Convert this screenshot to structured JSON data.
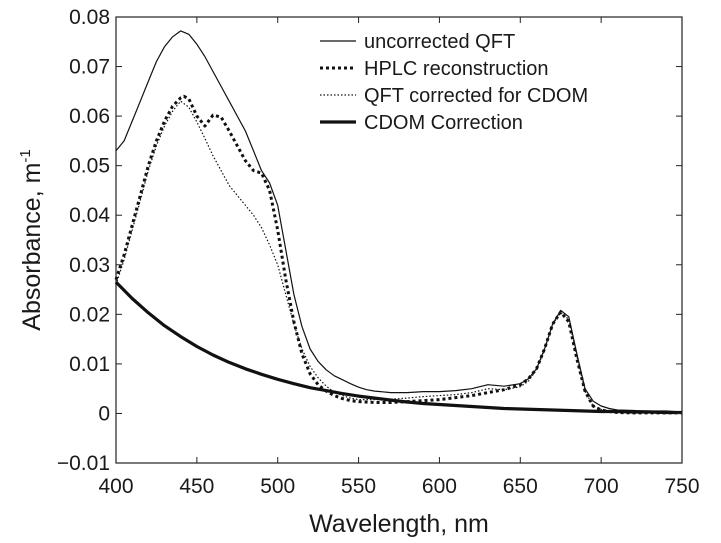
{
  "chart_data": {
    "type": "line",
    "xlabel": "Wavelength, nm",
    "ylabel_main": "Absorbance, m",
    "ylabel_superscript": "-1",
    "xlim": [
      400,
      750
    ],
    "ylim": [
      -0.01,
      0.08
    ],
    "xticks": [
      400,
      450,
      500,
      550,
      600,
      650,
      700,
      750
    ],
    "yticks": [
      -0.01,
      0,
      0.01,
      0.02,
      0.03,
      0.04,
      0.05,
      0.06,
      0.07,
      0.08
    ],
    "xtick_labels": [
      "400",
      "450",
      "500",
      "550",
      "600",
      "650",
      "700",
      "750"
    ],
    "ytick_labels": [
      "−0.01",
      "0",
      "0.01",
      "0.02",
      "0.03",
      "0.04",
      "0.05",
      "0.06",
      "0.07",
      "0.08"
    ],
    "grid": false,
    "legend_position": "top-right",
    "series": [
      {
        "name": "uncorrected QFT",
        "style": "thin-solid",
        "x": [
          400,
          405,
          410,
          415,
          420,
          425,
          430,
          435,
          440,
          445,
          450,
          455,
          460,
          465,
          470,
          475,
          480,
          485,
          490,
          495,
          500,
          505,
          510,
          515,
          520,
          525,
          530,
          535,
          540,
          545,
          550,
          555,
          560,
          570,
          580,
          590,
          600,
          610,
          620,
          630,
          640,
          650,
          655,
          660,
          665,
          670,
          675,
          680,
          685,
          690,
          695,
          700,
          705,
          710,
          720,
          730,
          740,
          750
        ],
        "values": [
          0.053,
          0.055,
          0.059,
          0.063,
          0.067,
          0.071,
          0.074,
          0.076,
          0.0772,
          0.0765,
          0.0745,
          0.072,
          0.069,
          0.066,
          0.063,
          0.06,
          0.057,
          0.053,
          0.049,
          0.0465,
          0.042,
          0.033,
          0.024,
          0.0175,
          0.013,
          0.0105,
          0.0088,
          0.0076,
          0.0068,
          0.006,
          0.0053,
          0.0048,
          0.0045,
          0.0042,
          0.0042,
          0.0044,
          0.0044,
          0.0046,
          0.005,
          0.0058,
          0.0055,
          0.006,
          0.007,
          0.009,
          0.013,
          0.018,
          0.0208,
          0.0195,
          0.012,
          0.005,
          0.0025,
          0.0015,
          0.001,
          0.0007,
          0.0006,
          0.0005,
          0.0005,
          0.0003
        ]
      },
      {
        "name": "HPLC reconstruction",
        "style": "thick-dotted",
        "x": [
          400,
          405,
          410,
          415,
          420,
          425,
          430,
          435,
          440,
          442,
          445,
          450,
          455,
          460,
          465,
          470,
          475,
          480,
          485,
          490,
          495,
          500,
          505,
          510,
          515,
          520,
          525,
          530,
          535,
          540,
          545,
          550,
          560,
          570,
          580,
          590,
          600,
          610,
          620,
          630,
          640,
          650,
          655,
          660,
          665,
          670,
          675,
          680,
          685,
          690,
          695,
          700,
          705,
          710,
          720,
          730,
          740,
          750
        ],
        "values": [
          0.027,
          0.032,
          0.038,
          0.044,
          0.05,
          0.055,
          0.059,
          0.062,
          0.0637,
          0.064,
          0.0635,
          0.06,
          0.058,
          0.0602,
          0.0598,
          0.057,
          0.054,
          0.051,
          0.049,
          0.0485,
          0.045,
          0.037,
          0.027,
          0.0185,
          0.012,
          0.008,
          0.0058,
          0.0045,
          0.0036,
          0.003,
          0.0026,
          0.0024,
          0.0022,
          0.0022,
          0.0024,
          0.0026,
          0.0028,
          0.0032,
          0.0036,
          0.0042,
          0.0048,
          0.0058,
          0.007,
          0.009,
          0.013,
          0.018,
          0.0205,
          0.0185,
          0.011,
          0.0045,
          0.0015,
          0.0007,
          0.0004,
          0.0002,
          0.0001,
          0.0001,
          0.0001,
          0.0001
        ]
      },
      {
        "name": "QFT corrected for CDOM",
        "style": "thin-dotted",
        "x": [
          400,
          405,
          410,
          415,
          420,
          425,
          430,
          435,
          440,
          445,
          450,
          455,
          460,
          465,
          470,
          475,
          480,
          485,
          490,
          495,
          500,
          505,
          510,
          515,
          520,
          525,
          530,
          535,
          540,
          545,
          550,
          560,
          570,
          580,
          590,
          600,
          610,
          620,
          630,
          640,
          650,
          655,
          660,
          665,
          670,
          675,
          680,
          685,
          690,
          695,
          700,
          705,
          710,
          715,
          720,
          725,
          730,
          735,
          740,
          745,
          750
        ],
        "values": [
          0.026,
          0.031,
          0.037,
          0.043,
          0.049,
          0.054,
          0.058,
          0.061,
          0.063,
          0.0618,
          0.0588,
          0.0555,
          0.052,
          0.049,
          0.046,
          0.044,
          0.042,
          0.04,
          0.0375,
          0.034,
          0.03,
          0.024,
          0.018,
          0.013,
          0.0095,
          0.0072,
          0.0055,
          0.0043,
          0.0036,
          0.0031,
          0.0028,
          0.0028,
          0.0029,
          0.0031,
          0.0034,
          0.0036,
          0.0038,
          0.0042,
          0.005,
          0.0048,
          0.0054,
          0.0065,
          0.0088,
          0.0128,
          0.018,
          0.0203,
          0.019,
          0.0115,
          0.0045,
          0.0015,
          0.0008,
          0.0003,
          0.0004,
          0.0006,
          0.0002,
          0.0005,
          0.0001,
          0.0004,
          0.0002,
          0.0001,
          0.0
        ]
      },
      {
        "name": "CDOM Correction",
        "style": "thick-solid",
        "x": [
          400,
          410,
          420,
          430,
          440,
          450,
          460,
          470,
          480,
          490,
          500,
          510,
          520,
          530,
          540,
          550,
          560,
          570,
          580,
          590,
          600,
          610,
          620,
          630,
          640,
          650,
          660,
          670,
          680,
          690,
          700,
          710,
          720,
          730,
          740,
          750
        ],
        "values": [
          0.0265,
          0.0232,
          0.0203,
          0.0177,
          0.0155,
          0.0135,
          0.0118,
          0.0103,
          0.009,
          0.0079,
          0.0069,
          0.006,
          0.0052,
          0.0046,
          0.004,
          0.0035,
          0.0031,
          0.0027,
          0.0023,
          0.002,
          0.0018,
          0.0016,
          0.0014,
          0.0012,
          0.001,
          0.0009,
          0.0008,
          0.0007,
          0.0006,
          0.0005,
          0.0004,
          0.0004,
          0.0003,
          0.0003,
          0.0002,
          0.0002
        ]
      }
    ]
  }
}
